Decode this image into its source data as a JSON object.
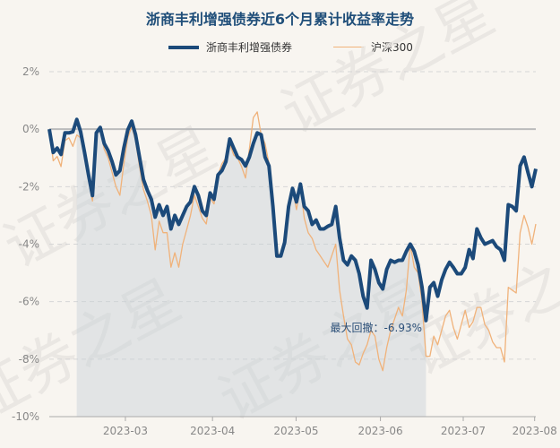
{
  "chart_data": {
    "type": "line",
    "title": "浙商丰利增强债券近6个月累计收益率走势",
    "xlabel": "",
    "ylabel": "",
    "ylim": [
      -10,
      2
    ],
    "yticks": [
      2,
      0,
      -2,
      -4,
      -6,
      -8,
      -10
    ],
    "ytick_labels": [
      "2%",
      "0%",
      "-2%",
      "-4%",
      "-6%",
      "-8%",
      "-10%"
    ],
    "xticks": [
      {
        "label": "2023-03",
        "index": 19.4
      },
      {
        "label": "2023-04",
        "index": 41.6
      },
      {
        "label": "2023-05",
        "index": 62.9
      },
      {
        "label": "2023-06",
        "index": 84.4
      },
      {
        "label": "2023-07",
        "index": 105.5
      },
      {
        "label": "2023-08",
        "index": 123.7
      }
    ],
    "grid": true,
    "legend_placement": "top-center",
    "series": [
      {
        "name": "浙商丰利增强债券",
        "color": "#1c4a7a",
        "values": [
          0,
          -0.81,
          -0.66,
          -0.88,
          -0.13,
          -0.13,
          -0.09,
          0.34,
          -0.09,
          -0.81,
          -1.59,
          -2.31,
          -0.13,
          0.06,
          -0.5,
          -0.75,
          -1.13,
          -1.59,
          -1.44,
          -0.66,
          -0.03,
          0.28,
          -0.19,
          -0.97,
          -1.75,
          -2.13,
          -2.44,
          -3.06,
          -2.63,
          -3.0,
          -2.69,
          -3.47,
          -3.0,
          -3.31,
          -3.0,
          -2.69,
          -2.53,
          -2.0,
          -2.31,
          -2.84,
          -3.0,
          -2.22,
          -2.44,
          -1.59,
          -1.44,
          -1.13,
          -0.34,
          -0.66,
          -0.97,
          -1.06,
          -1.28,
          -0.97,
          -0.5,
          -0.13,
          -0.19,
          -0.97,
          -1.28,
          -2.69,
          -4.41,
          -4.41,
          -3.94,
          -2.69,
          -2.06,
          -2.53,
          -1.91,
          -2.69,
          -2.84,
          -3.31,
          -3.16,
          -3.47,
          -3.47,
          -3.38,
          -3.31,
          -2.69,
          -3.78,
          -4.56,
          -4.72,
          -4.41,
          -4.56,
          -5.03,
          -5.81,
          -6.22,
          -4.56,
          -4.88,
          -5.34,
          -5.56,
          -4.88,
          -4.56,
          -4.63,
          -4.56,
          -4.56,
          -4.25,
          -4.0,
          -4.25,
          -4.72,
          -5.5,
          -6.66,
          -5.5,
          -5.34,
          -5.81,
          -5.25,
          -4.88,
          -4.63,
          -4.81,
          -5.03,
          -5.03,
          -4.81,
          -4.19,
          -4.5,
          -3.47,
          -3.78,
          -4.0,
          -3.94,
          -3.88,
          -4.09,
          -4.19,
          -4.56,
          -2.63,
          -2.69,
          -2.84,
          -1.28,
          -0.97,
          -1.5,
          -2.0,
          -1.38
        ]
      },
      {
        "name": "沪深300",
        "color": "#f0b27a",
        "values": [
          0,
          -1.1,
          -0.95,
          -1.3,
          -0.4,
          -0.3,
          -0.6,
          -0.2,
          -0.3,
          -1.0,
          -1.8,
          -2.5,
          -0.2,
          0.0,
          -0.7,
          -1.0,
          -1.5,
          -2.0,
          -2.3,
          -1.2,
          -0.3,
          0.1,
          -0.4,
          -1.3,
          -2.1,
          -2.5,
          -3.0,
          -4.2,
          -3.2,
          -3.6,
          -3.6,
          -4.8,
          -4.3,
          -4.8,
          -4.0,
          -3.5,
          -3.0,
          -2.3,
          -2.7,
          -3.1,
          -3.3,
          -2.4,
          -2.6,
          -1.6,
          -1.2,
          -1.0,
          -0.5,
          -0.9,
          -1.0,
          -1.3,
          -1.7,
          -0.7,
          0.4,
          0.6,
          -0.2,
          -0.5,
          -1.2,
          -2.8,
          -4.3,
          -4.4,
          -3.9,
          -2.6,
          -2.1,
          -2.8,
          -2.0,
          -3.1,
          -3.6,
          -3.8,
          -4.2,
          -4.4,
          -4.6,
          -4.8,
          -4.4,
          -4.0,
          -5.6,
          -6.5,
          -7.3,
          -7.5,
          -8.1,
          -8.2,
          -7.8,
          -7.5,
          -7.0,
          -7.2,
          -8.0,
          -8.4,
          -7.6,
          -7.0,
          -6.6,
          -6.2,
          -6.5,
          -5.6,
          -4.0,
          -4.8,
          -5.0,
          -6.0,
          -7.9,
          -7.9,
          -7.2,
          -7.5,
          -7.0,
          -6.5,
          -6.3,
          -6.9,
          -7.3,
          -6.8,
          -6.3,
          -6.9,
          -6.7,
          -6.2,
          -6.2,
          -6.8,
          -7.0,
          -7.4,
          -7.6,
          -7.6,
          -8.1,
          -5.5,
          -5.6,
          -5.7,
          -3.6,
          -3.0,
          -3.4,
          -4.0,
          -3.3
        ]
      }
    ],
    "max_drawdown": {
      "label": "最大回撤：-6.93%",
      "start_index": 7,
      "end_index": 96
    },
    "watermark": "证券之星"
  }
}
